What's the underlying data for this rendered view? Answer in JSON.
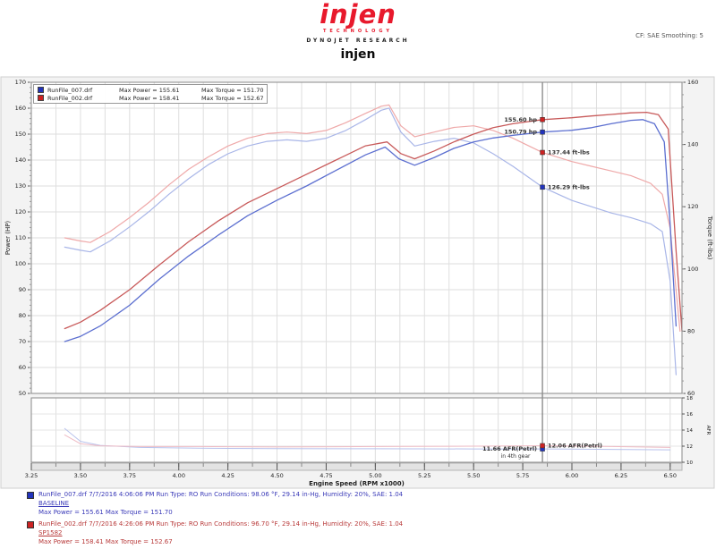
{
  "header": {
    "logo_text": "injen",
    "logo_sub": "TECHNOLOGY",
    "dynojet": "DYNOJET RESEARCH",
    "title": "injen",
    "top_right": "CF: SAE    Smoothing: 5"
  },
  "chart_data": {
    "type": "line",
    "title": "injen",
    "xlabel": "Engine Speed (RPM x1000)",
    "x_range": [
      3.25,
      6.56
    ],
    "x_minor": 0.125,
    "x_ticks": [
      "3.25",
      "3.50",
      "3.75",
      "4.00",
      "4.25",
      "4.50",
      "4.75",
      "5.00",
      "5.25",
      "5.50",
      "5.75",
      "6.00",
      "6.25",
      "6.50"
    ],
    "cursor_rpm": 5.85,
    "axes": {
      "power": {
        "label": "Power (HP)",
        "min": 50,
        "max": 170,
        "ticks": [
          50,
          60,
          70,
          80,
          90,
          100,
          110,
          120,
          130,
          140,
          150,
          160,
          170
        ]
      },
      "torque": {
        "label": "Torque (ft-lbs)",
        "min": 60,
        "max": 160,
        "ticks": [
          60,
          80,
          100,
          120,
          140,
          160
        ]
      },
      "afr": {
        "label": "AFR",
        "min": 10,
        "max": 18,
        "ticks": [
          10,
          12,
          14,
          16,
          18
        ]
      }
    },
    "legend": [
      {
        "file": "RunFile_007.drf",
        "power_label": "Max Power = 155.61",
        "torque_label": "Max Torque = 151.70",
        "color": "#2233bb"
      },
      {
        "file": "RunFile_002.drf",
        "power_label": "Max Power = 158.41",
        "torque_label": "Max Torque = 152.67",
        "color": "#cc2222"
      }
    ],
    "series": [
      {
        "name": "baseline-torque-curve",
        "axis": "torque",
        "color": "#a9b6e8",
        "width": 1.2,
        "points": [
          [
            3.42,
            107
          ],
          [
            3.5,
            106
          ],
          [
            3.55,
            105.5
          ],
          [
            3.65,
            109
          ],
          [
            3.75,
            113.5
          ],
          [
            3.85,
            118.5
          ],
          [
            3.95,
            124
          ],
          [
            4.05,
            129
          ],
          [
            4.15,
            133.5
          ],
          [
            4.25,
            137
          ],
          [
            4.35,
            139.5
          ],
          [
            4.45,
            141
          ],
          [
            4.55,
            141.5
          ],
          [
            4.65,
            141
          ],
          [
            4.75,
            142
          ],
          [
            4.85,
            144.5
          ],
          [
            4.95,
            148
          ],
          [
            5.03,
            151
          ],
          [
            5.07,
            151.7
          ],
          [
            5.13,
            144
          ],
          [
            5.2,
            139.5
          ],
          [
            5.3,
            141
          ],
          [
            5.4,
            142
          ],
          [
            5.5,
            140.5
          ],
          [
            5.6,
            137
          ],
          [
            5.7,
            133
          ],
          [
            5.85,
            126.3
          ],
          [
            6.0,
            122
          ],
          [
            6.1,
            120
          ],
          [
            6.2,
            118
          ],
          [
            6.3,
            116.5
          ],
          [
            6.4,
            114.5
          ],
          [
            6.46,
            112
          ],
          [
            6.5,
            96
          ],
          [
            6.53,
            66
          ]
        ]
      },
      {
        "name": "injen-torque-curve",
        "axis": "torque",
        "color": "#efa9a9",
        "width": 1.2,
        "points": [
          [
            3.42,
            110
          ],
          [
            3.5,
            109
          ],
          [
            3.55,
            108.5
          ],
          [
            3.65,
            112
          ],
          [
            3.75,
            116.5
          ],
          [
            3.85,
            121.5
          ],
          [
            3.95,
            127
          ],
          [
            4.05,
            132
          ],
          [
            4.15,
            136
          ],
          [
            4.25,
            139.5
          ],
          [
            4.35,
            142
          ],
          [
            4.45,
            143.5
          ],
          [
            4.55,
            144
          ],
          [
            4.65,
            143.5
          ],
          [
            4.75,
            144.5
          ],
          [
            4.85,
            147
          ],
          [
            4.95,
            150
          ],
          [
            5.03,
            152.3
          ],
          [
            5.07,
            152.7
          ],
          [
            5.13,
            146
          ],
          [
            5.2,
            142.5
          ],
          [
            5.3,
            144
          ],
          [
            5.4,
            145.5
          ],
          [
            5.5,
            146
          ],
          [
            5.6,
            144.5
          ],
          [
            5.7,
            142
          ],
          [
            5.85,
            137.4
          ],
          [
            6.0,
            134.5
          ],
          [
            6.1,
            133
          ],
          [
            6.2,
            131.5
          ],
          [
            6.3,
            130
          ],
          [
            6.4,
            127.5
          ],
          [
            6.46,
            124
          ],
          [
            6.5,
            113
          ],
          [
            6.55,
            80
          ]
        ]
      },
      {
        "name": "baseline-power-curve",
        "axis": "power",
        "color": "#5c6fd0",
        "width": 1.3,
        "points": [
          [
            3.42,
            70
          ],
          [
            3.5,
            72
          ],
          [
            3.6,
            76
          ],
          [
            3.75,
            84
          ],
          [
            3.9,
            94
          ],
          [
            4.05,
            103
          ],
          [
            4.2,
            111
          ],
          [
            4.35,
            118.5
          ],
          [
            4.5,
            124.5
          ],
          [
            4.65,
            130
          ],
          [
            4.8,
            136
          ],
          [
            4.95,
            142
          ],
          [
            5.05,
            145
          ],
          [
            5.12,
            140.5
          ],
          [
            5.2,
            138
          ],
          [
            5.3,
            141
          ],
          [
            5.4,
            144.5
          ],
          [
            5.5,
            147
          ],
          [
            5.6,
            148.5
          ],
          [
            5.7,
            149.5
          ],
          [
            5.85,
            150.8
          ],
          [
            6.0,
            151.5
          ],
          [
            6.1,
            152.5
          ],
          [
            6.2,
            154
          ],
          [
            6.3,
            155.3
          ],
          [
            6.36,
            155.6
          ],
          [
            6.42,
            154
          ],
          [
            6.47,
            147
          ],
          [
            6.5,
            115
          ],
          [
            6.53,
            76
          ]
        ]
      },
      {
        "name": "injen-power-curve",
        "axis": "power",
        "color": "#c85a5a",
        "width": 1.3,
        "points": [
          [
            3.42,
            75
          ],
          [
            3.5,
            77.5
          ],
          [
            3.6,
            82
          ],
          [
            3.75,
            90
          ],
          [
            3.9,
            99.5
          ],
          [
            4.05,
            108.5
          ],
          [
            4.2,
            116.5
          ],
          [
            4.35,
            123.5
          ],
          [
            4.5,
            129
          ],
          [
            4.65,
            134.5
          ],
          [
            4.8,
            140
          ],
          [
            4.95,
            145.5
          ],
          [
            5.06,
            147
          ],
          [
            5.13,
            142.5
          ],
          [
            5.2,
            140.5
          ],
          [
            5.3,
            143.5
          ],
          [
            5.4,
            147
          ],
          [
            5.5,
            150
          ],
          [
            5.6,
            152.5
          ],
          [
            5.7,
            154
          ],
          [
            5.85,
            155.6
          ],
          [
            6.0,
            156.3
          ],
          [
            6.1,
            157
          ],
          [
            6.2,
            157.6
          ],
          [
            6.3,
            158.2
          ],
          [
            6.38,
            158.4
          ],
          [
            6.44,
            157.5
          ],
          [
            6.49,
            152
          ],
          [
            6.53,
            105
          ],
          [
            6.56,
            74
          ]
        ]
      },
      {
        "name": "baseline-afr-curve",
        "axis": "afr",
        "color": "#b8c2ec",
        "width": 1,
        "points": [
          [
            3.42,
            14.2
          ],
          [
            3.5,
            12.6
          ],
          [
            3.6,
            12.1
          ],
          [
            3.8,
            11.85
          ],
          [
            4.1,
            11.75
          ],
          [
            4.5,
            11.7
          ],
          [
            5.0,
            11.68
          ],
          [
            5.5,
            11.66
          ],
          [
            5.85,
            11.66
          ],
          [
            6.2,
            11.6
          ],
          [
            6.5,
            11.55
          ]
        ]
      },
      {
        "name": "injen-afr-curve",
        "axis": "afr",
        "color": "#eebbc4",
        "width": 1,
        "points": [
          [
            3.42,
            13.4
          ],
          [
            3.5,
            12.3
          ],
          [
            3.6,
            12.05
          ],
          [
            3.8,
            11.95
          ],
          [
            4.1,
            11.95
          ],
          [
            4.5,
            11.9
          ],
          [
            5.0,
            11.95
          ],
          [
            5.5,
            12.0
          ],
          [
            5.85,
            12.06
          ],
          [
            6.2,
            11.95
          ],
          [
            6.5,
            11.85
          ]
        ]
      }
    ],
    "annotations": [
      {
        "text": "155.60 hp",
        "axis": "power",
        "value": 155.6,
        "color": "#cc2222",
        "side": "left"
      },
      {
        "text": "150.79 hp",
        "axis": "power",
        "value": 150.79,
        "color": "#2233bb",
        "side": "left"
      },
      {
        "text": "137.44 ft-lbs",
        "axis": "torque",
        "value": 137.44,
        "color": "#cc2222",
        "side": "right"
      },
      {
        "text": "126.29 ft-lbs",
        "axis": "torque",
        "value": 126.29,
        "color": "#2233bb",
        "side": "right"
      },
      {
        "text": "11.66 AFR(Petrl)",
        "sub": "in 4th gear",
        "axis": "afr",
        "value": 11.66,
        "color": "#2233bb",
        "side": "left"
      },
      {
        "text": "12.06 AFR(Petrl)",
        "axis": "afr",
        "value": 12.06,
        "color": "#cc2222",
        "side": "right"
      }
    ]
  },
  "footer": {
    "runs": [
      {
        "color": "#3a3ab8",
        "swatch": "#2233bb",
        "line1": "RunFile_007.drf   7/7/2016 4:06:06 PM   Run Type: RO   Run Conditions: 98.06 °F, 29.14 in-Hg, Humidity: 20%, SAE: 1.04",
        "name": "BASELINE",
        "line3": "Max Power = 155.61   Max Torque = 151.70"
      },
      {
        "color": "#b83a3a",
        "swatch": "#cc2222",
        "line1": "RunFile_002.drf   7/7/2016 4:26:06 PM   Run Type: RO   Run Conditions: 96.70 °F, 29.14 in-Hg, Humidity: 20%, SAE: 1.04",
        "name": "SP1582",
        "line3": "Max Power = 158.41   Max Torque = 152.67"
      }
    ]
  }
}
